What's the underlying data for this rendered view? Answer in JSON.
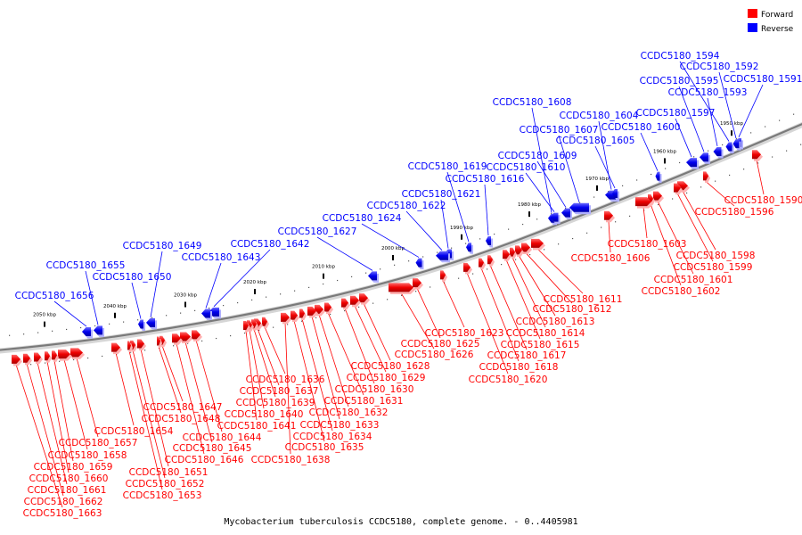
{
  "legend": [
    {
      "label": "Forward",
      "color": "#ff0000"
    },
    {
      "label": "Reverse",
      "color": "#0000ff"
    }
  ],
  "caption": "Mycobacterium tuberculosis CCDC5180, complete genome. - 0..4405981",
  "tick_unit": "kbp",
  "ticks": [
    1950,
    1960,
    1970,
    1980,
    1990,
    2000,
    2010,
    2020,
    2030,
    2040,
    2050
  ],
  "reverse_genes": [
    "CCDC5180_1591",
    "CCDC5180_1592",
    "CCDC5180_1593",
    "CCDC5180_1594",
    "CCDC5180_1595",
    "CCDC5180_1597",
    "CCDC5180_1600",
    "CCDC5180_1604",
    "CCDC5180_1605",
    "CCDC5180_1607",
    "CCDC5180_1608",
    "CCDC5180_1609",
    "CCDC5180_1610",
    "CCDC5180_1616",
    "CCDC5180_1619",
    "CCDC5180_1621",
    "CCDC5180_1622",
    "CCDC5180_1624",
    "CCDC5180_1627",
    "CCDC5180_1642",
    "CCDC5180_1643",
    "CCDC5180_1649",
    "CCDC5180_1650",
    "CCDC5180_1655",
    "CCDC5180_1656"
  ],
  "forward_genes": [
    "CCDC5180_1590",
    "CCDC5180_1596",
    "CCDC5180_1598",
    "CCDC5180_1599",
    "CCDC5180_1601",
    "CCDC5180_1602",
    "CCDC5180_1603",
    "CCDC5180_1606",
    "CCDC5180_1611",
    "CCDC5180_1612",
    "CCDC5180_1613",
    "CCDC5180_1614",
    "CCDC5180_1615",
    "CCDC5180_1617",
    "CCDC5180_1618",
    "CCDC5180_1620",
    "CCDC5180_1623",
    "CCDC5180_1625",
    "CCDC5180_1626",
    "CCDC5180_1628",
    "CCDC5180_1629",
    "CCDC5180_1630",
    "CCDC5180_1631",
    "CCDC5180_1632",
    "CCDC5180_1633",
    "CCDC5180_1634",
    "CCDC5180_1635",
    "CCDC5180_1636",
    "CCDC5180_1637",
    "CCDC5180_1638",
    "CCDC5180_1639",
    "CCDC5180_1640",
    "CCDC5180_1641",
    "CCDC5180_1644",
    "CCDC5180_1645",
    "CCDC5180_1646",
    "CCDC5180_1647",
    "CCDC5180_1648",
    "CCDC5180_1651",
    "CCDC5180_1652",
    "CCDC5180_1653",
    "CCDC5180_1654",
    "CCDC5180_1657",
    "CCDC5180_1658",
    "CCDC5180_1659",
    "CCDC5180_1660",
    "CCDC5180_1661",
    "CCDC5180_1662",
    "CCDC5180_1663"
  ]
}
